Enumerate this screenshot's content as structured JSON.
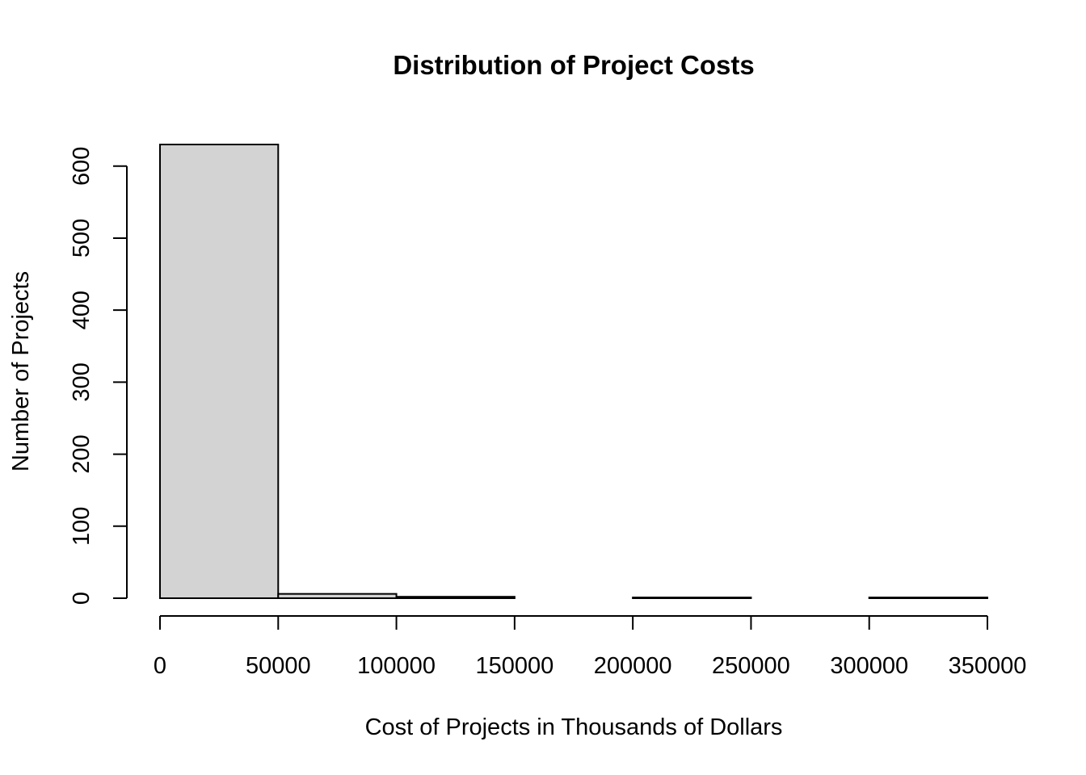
{
  "chart_data": {
    "type": "bar",
    "title": "Distribution of Project Costs",
    "xlabel": "Cost of Projects in Thousands of Dollars",
    "ylabel": "Number of Projects",
    "bin_edges": [
      0,
      50000,
      100000,
      150000,
      200000,
      250000,
      300000,
      350000
    ],
    "values": [
      630,
      6,
      2,
      0,
      1,
      0,
      1
    ],
    "x_ticks": [
      0,
      50000,
      100000,
      150000,
      200000,
      250000,
      300000,
      350000
    ],
    "x_tick_labels": [
      "0",
      "50000",
      "100000",
      "150000",
      "200000",
      "250000",
      "300000",
      "350000"
    ],
    "y_ticks": [
      0,
      100,
      200,
      300,
      400,
      500,
      600
    ],
    "y_tick_labels": [
      "0",
      "100",
      "200",
      "300",
      "400",
      "500",
      "600"
    ],
    "xlim": [
      0,
      350000
    ],
    "ylim": [
      0,
      630
    ],
    "bar_fill": "#d3d3d3",
    "grid": false,
    "legend": "none"
  }
}
